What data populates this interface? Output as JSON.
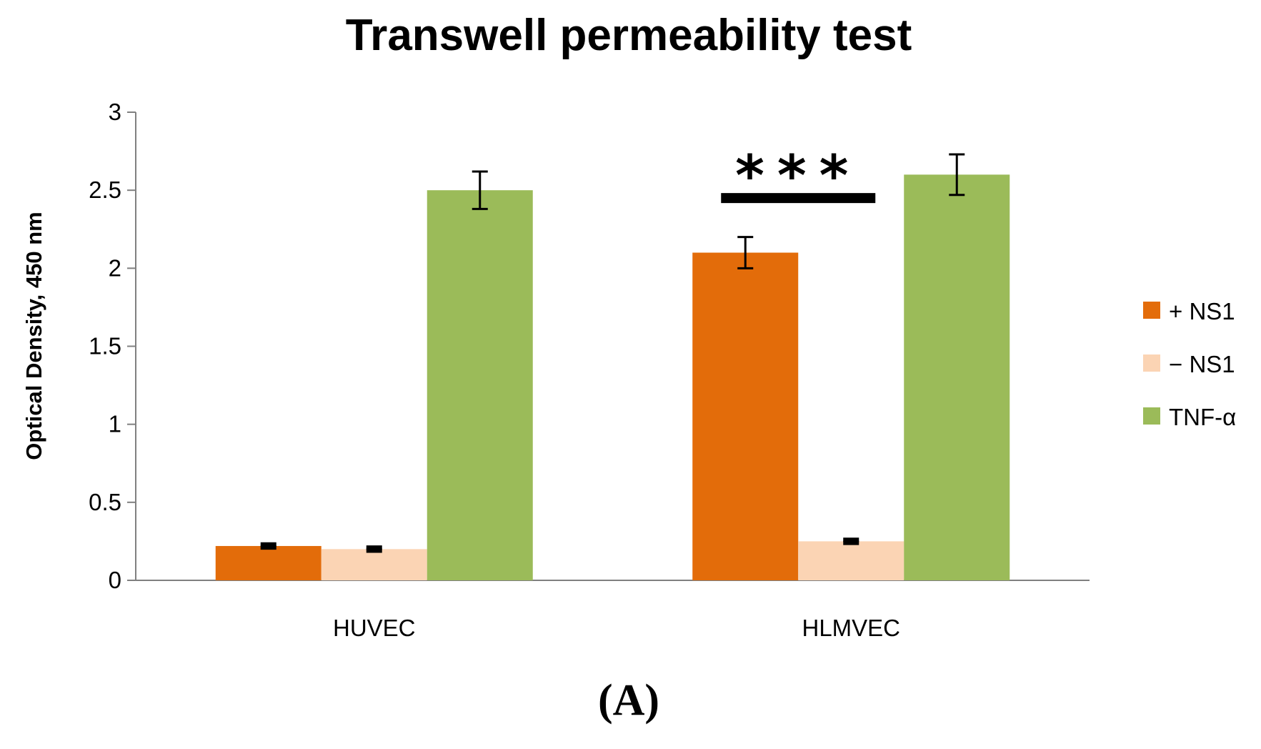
{
  "chart_data": {
    "type": "bar",
    "title": "Transwell permeability test",
    "ylabel": "Optical Density, 450 nm",
    "xlabel": "",
    "ylim": [
      0,
      3
    ],
    "yticks": [
      "0",
      "0.5",
      "1",
      "1.5",
      "2",
      "2.5",
      "3"
    ],
    "categories": [
      "HUVEC",
      "HLMVEC"
    ],
    "series": [
      {
        "name": "+ NS1",
        "color": "#e36c0a",
        "values": [
          0.22,
          2.1
        ],
        "errors": [
          0.01,
          0.1
        ]
      },
      {
        "name": "− NS1",
        "color": "#fbd4b4",
        "values": [
          0.2,
          0.25
        ],
        "errors": [
          0.01,
          0.01
        ]
      },
      {
        "name": "TNF-α",
        "color": "#9bbb59",
        "values": [
          2.5,
          2.6
        ],
        "errors": [
          0.12,
          0.13
        ]
      }
    ],
    "legend_position": "right",
    "annotations": [
      {
        "text": "***",
        "category": "HLMVEC",
        "between_series": [
          "+ NS1",
          "− NS1"
        ],
        "y": 2.45
      }
    ],
    "grid": false
  },
  "panel_label": "(A)"
}
